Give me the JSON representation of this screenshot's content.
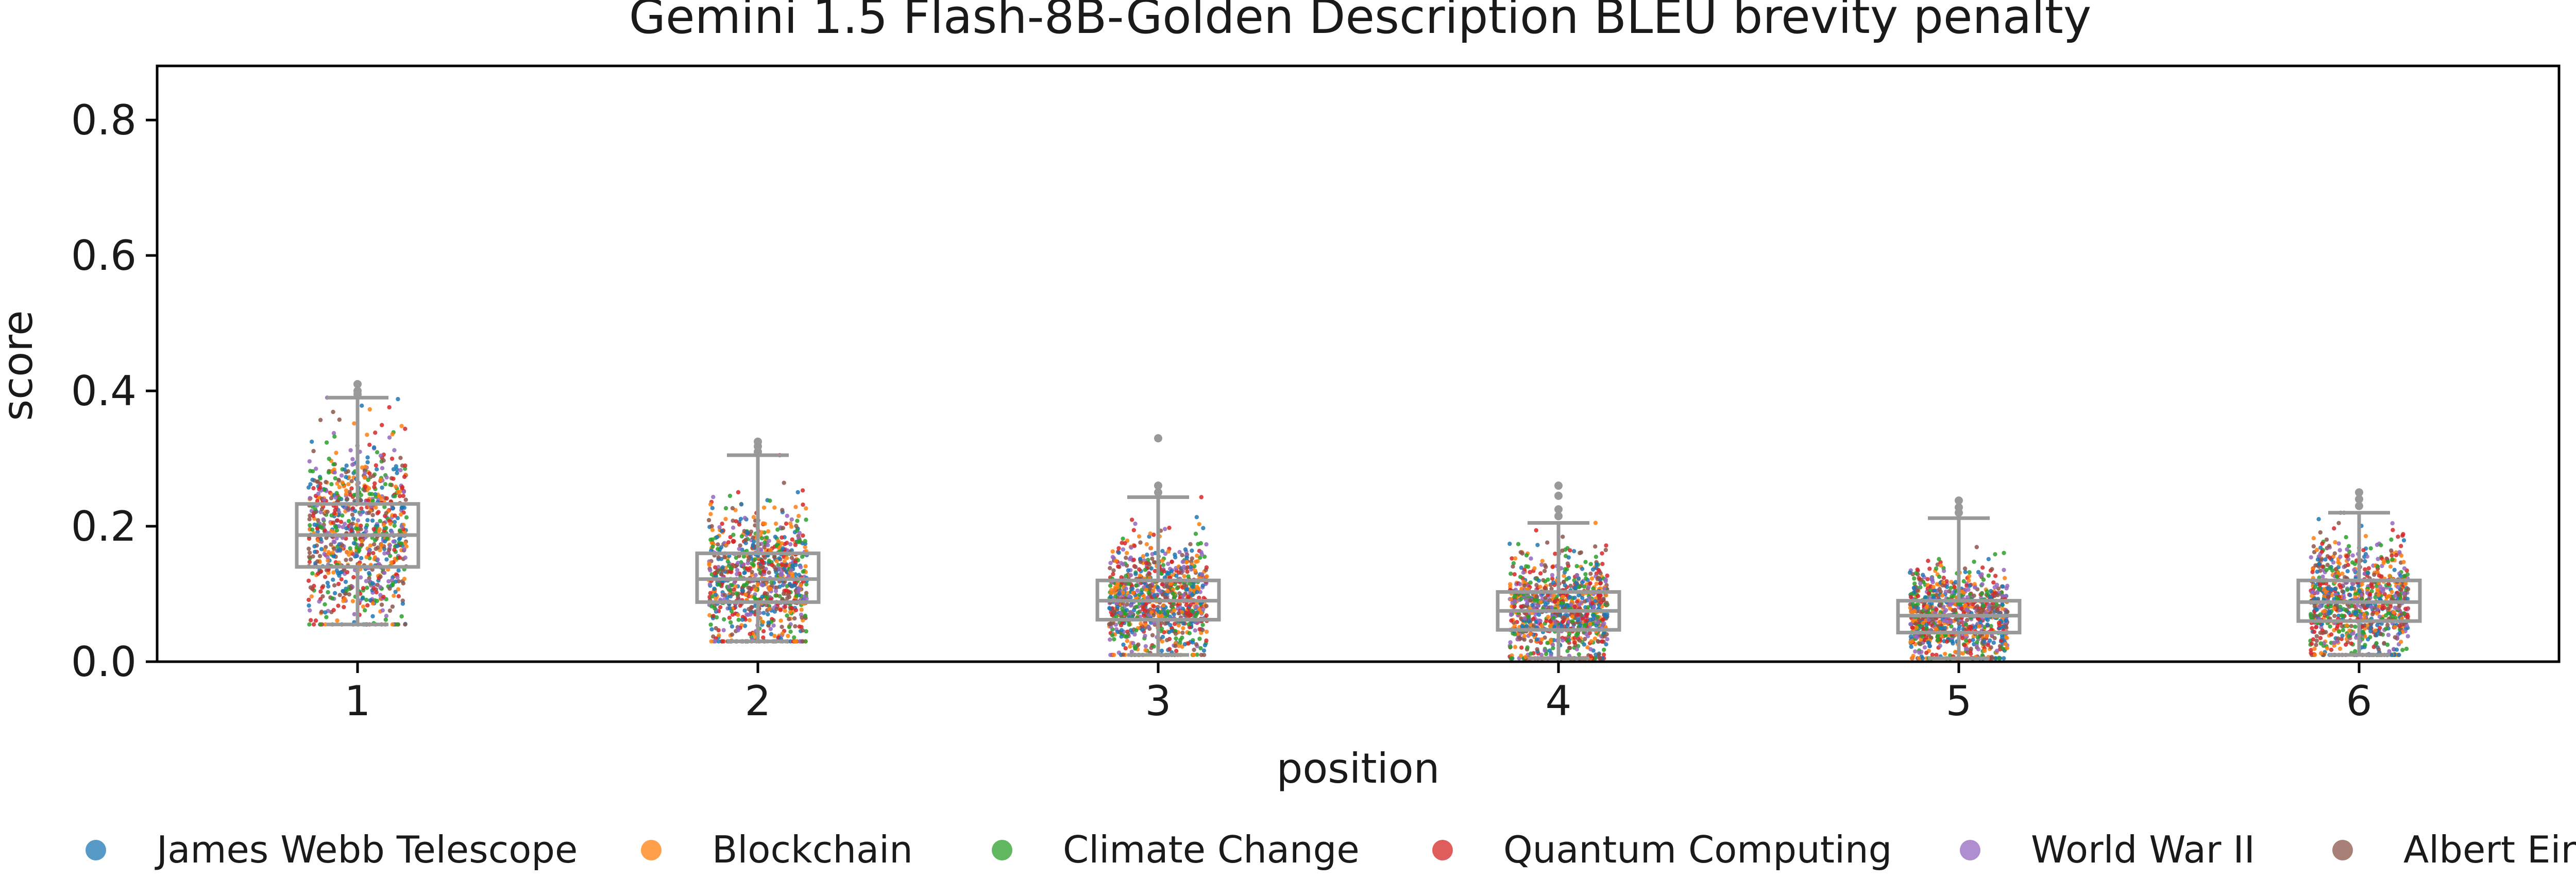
{
  "chart_data": {
    "type": "box",
    "title": "Gemini 1.5 Flash-8B-Golden Description BLEU brevity penalty",
    "xlabel": "position",
    "ylabel": "score",
    "ylim": [
      0,
      0.88
    ],
    "yticks": [
      0.0,
      0.2,
      0.4,
      0.6,
      0.8
    ],
    "ytick_labels": [
      "0.0",
      "0.2",
      "0.4",
      "0.6",
      "0.8"
    ],
    "categories": [
      "1",
      "2",
      "3",
      "4",
      "5",
      "6"
    ],
    "grid": false,
    "legend_position": "bottom",
    "boxes": [
      {
        "position": "1",
        "q1": 0.14,
        "median": 0.187,
        "q3": 0.233,
        "whisker_low": 0.055,
        "whisker_high": 0.39,
        "outliers": [
          0.395,
          0.4,
          0.41
        ]
      },
      {
        "position": "2",
        "q1": 0.088,
        "median": 0.122,
        "q3": 0.16,
        "whisker_low": 0.03,
        "whisker_high": 0.305,
        "outliers": [
          0.31,
          0.318,
          0.325
        ]
      },
      {
        "position": "3",
        "q1": 0.062,
        "median": 0.09,
        "q3": 0.12,
        "whisker_low": 0.01,
        "whisker_high": 0.243,
        "outliers": [
          0.25,
          0.26,
          0.33
        ]
      },
      {
        "position": "4",
        "q1": 0.047,
        "median": 0.075,
        "q3": 0.103,
        "whisker_low": 0.005,
        "whisker_high": 0.205,
        "outliers": [
          0.215,
          0.225,
          0.245,
          0.26
        ]
      },
      {
        "position": "5",
        "q1": 0.043,
        "median": 0.068,
        "q3": 0.09,
        "whisker_low": 0.005,
        "whisker_high": 0.212,
        "outliers": [
          0.22,
          0.228,
          0.238
        ]
      },
      {
        "position": "6",
        "q1": 0.06,
        "median": 0.088,
        "q3": 0.12,
        "whisker_low": 0.01,
        "whisker_high": 0.22,
        "outliers": [
          0.23,
          0.24,
          0.25
        ]
      }
    ],
    "series": [
      {
        "name": "James Webb Telescope",
        "color": "#1f77b4"
      },
      {
        "name": "Blockchain",
        "color": "#ff7f0e"
      },
      {
        "name": "Climate Change",
        "color": "#2ca02c"
      },
      {
        "name": "Quantum Computing",
        "color": "#d62728"
      },
      {
        "name": "World War II",
        "color": "#9467bd"
      },
      {
        "name": "Albert Einstein",
        "color": "#8c564b"
      }
    ],
    "box_color": "#999999"
  }
}
